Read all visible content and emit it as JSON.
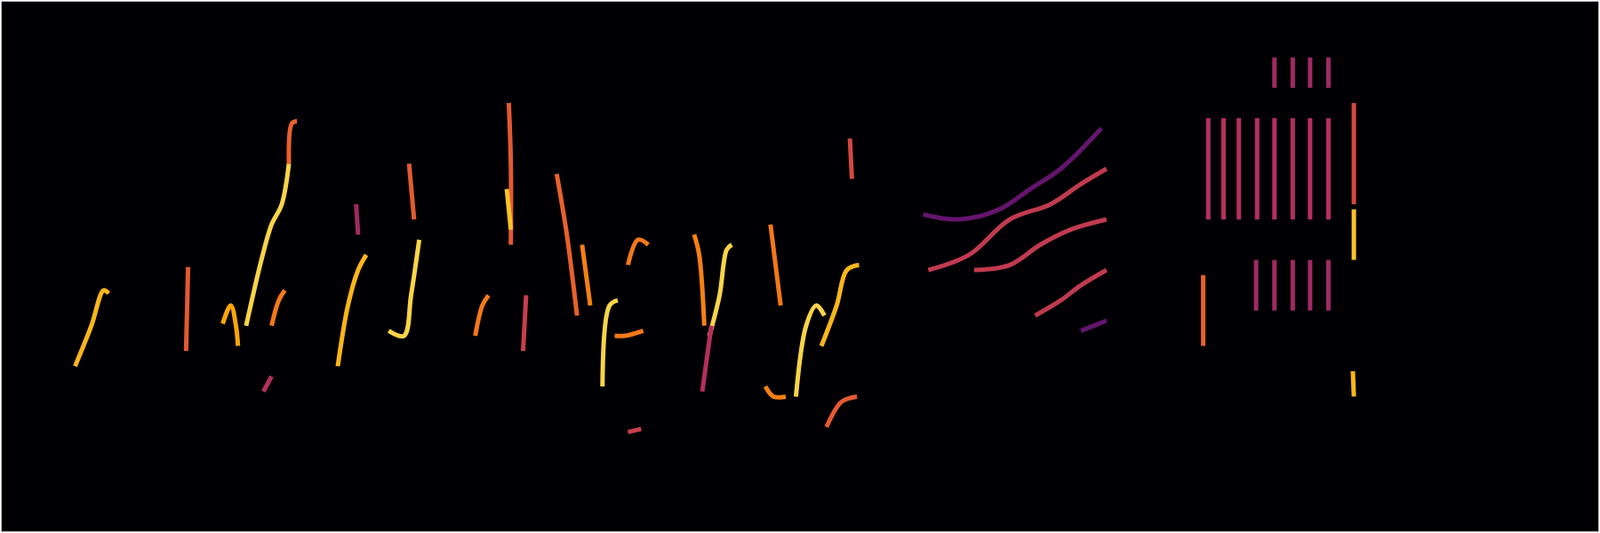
{
  "chart_data": {
    "type": "line",
    "xlim": [
      0,
      1568
    ],
    "ylim": [
      0,
      523
    ],
    "grid": false,
    "tick_labels": false,
    "series": [
      {
        "x": [
          72,
          88,
          100,
          105
        ],
        "values": [
          163,
          203,
          238,
          235
        ],
        "color": "#fbb61a"
      },
      {
        "x": [
          181,
          183
        ],
        "values": [
          178,
          261
        ],
        "color": "#e35932"
      },
      {
        "x": [
          217,
          225,
          230,
          232
        ],
        "values": [
          205,
          223,
          203,
          183
        ],
        "color": "#fca50a"
      },
      {
        "x": [
          240,
          255,
          265,
          275,
          282
        ],
        "values": [
          203,
          268,
          303,
          323,
          363
        ],
        "color": "#f9d448"
      },
      {
        "x": [
          282,
          285,
          290
        ],
        "values": [
          363,
          403,
          405
        ],
        "color": "#e8602c"
      },
      {
        "x": [
          257,
          265
        ],
        "values": [
          138,
          153
        ],
        "color": "#b52f5d"
      },
      {
        "x": [
          265,
          272,
          278
        ],
        "values": [
          203,
          228,
          238
        ],
        "color": "#f37819"
      },
      {
        "x": [
          330,
          340,
          350,
          358
        ],
        "values": [
          163,
          223,
          258,
          273
        ],
        "color": "#fbb61a"
      },
      {
        "x": [
          348,
          350
        ],
        "values": [
          323,
          293
        ],
        "color": "#9f2a63"
      },
      {
        "x": [
          380,
          395,
          402,
          410
        ],
        "values": [
          198,
          193,
          233,
          288
        ],
        "color": "#f9d448"
      },
      {
        "x": [
          400,
          405
        ],
        "values": [
          363,
          308
        ],
        "color": "#e45a31"
      },
      {
        "x": [
          465,
          472,
          478
        ],
        "values": [
          193,
          223,
          233
        ],
        "color": "#f37819"
      },
      {
        "x": [
          498,
          500,
          500
        ],
        "values": [
          423,
          363,
          283
        ],
        "color": "#e35932"
      },
      {
        "x": [
          496,
          500
        ],
        "values": [
          338,
          298
        ],
        "color": "#fcc229"
      },
      {
        "x": [
          512,
          515
        ],
        "values": [
          178,
          233
        ],
        "color": "#c73e4c"
      },
      {
        "x": [
          545,
          555,
          565
        ],
        "values": [
          353,
          293,
          213
        ],
        "color": "#e8602c"
      },
      {
        "x": [
          570,
          578
        ],
        "values": [
          283,
          223
        ],
        "color": "#f68013"
      },
      {
        "x": [
          590,
          597,
          605
        ],
        "values": [
          143,
          223,
          228
        ],
        "color": "#f9d448"
      },
      {
        "x": [
          602,
          612,
          630
        ],
        "values": [
          193,
          193,
          198
        ],
        "color": "#f37819"
      },
      {
        "x": [
          615,
          625,
          635
        ],
        "values": [
          263,
          288,
          283
        ],
        "color": "#f37819"
      },
      {
        "x": [
          615,
          628
        ],
        "values": [
          98,
          101
        ],
        "color": "#c73e4c"
      },
      {
        "x": [
          680,
          685,
          690
        ],
        "values": [
          293,
          273,
          203
        ],
        "color": "#f68013"
      },
      {
        "x": [
          695,
          705,
          712,
          717
        ],
        "values": [
          193,
          233,
          278,
          283
        ],
        "color": "#f9d448"
      },
      {
        "x": [
          688,
          697
        ],
        "values": [
          138,
          203
        ],
        "color": "#b52f5d"
      },
      {
        "x": [
          755,
          760,
          765
        ],
        "values": [
          303,
          263,
          223
        ],
        "color": "#f37819"
      },
      {
        "x": [
          750,
          758,
          770
        ],
        "values": [
          143,
          133,
          133
        ],
        "color": "#f68013"
      },
      {
        "x": [
          780,
          790,
          800,
          808
        ],
        "values": [
          133,
          203,
          223,
          213
        ],
        "color": "#f9d448"
      },
      {
        "x": [
          805,
          820,
          830,
          842
        ],
        "values": [
          183,
          223,
          258,
          263
        ],
        "color": "#fbb61a"
      },
      {
        "x": [
          810,
          825,
          840
        ],
        "values": [
          103,
          128,
          133
        ],
        "color": "#e35932"
      },
      {
        "x": [
          833,
          835
        ],
        "values": [
          388,
          348
        ],
        "color": "#d44842"
      },
      {
        "x": [
          905,
          940,
          980,
          1010,
          1040,
          1080
        ],
        "values": [
          313,
          308,
          318,
          338,
          358,
          398
        ],
        "color": "#65156e"
      },
      {
        "x": [
          910,
          950,
          990,
          1030,
          1060,
          1085
        ],
        "values": [
          258,
          273,
          308,
          323,
          343,
          358
        ],
        "color": "#c03a50"
      },
      {
        "x": [
          955,
          990,
          1020,
          1050,
          1085
        ],
        "values": [
          258,
          263,
          283,
          298,
          308
        ],
        "color": "#c03a50"
      },
      {
        "x": [
          1015,
          1040,
          1060,
          1085
        ],
        "values": [
          213,
          228,
          243,
          258
        ],
        "color": "#c03a50"
      },
      {
        "x": [
          1060,
          1085
        ],
        "values": [
          198,
          208
        ],
        "color": "#65156e"
      },
      {
        "x": [
          1185,
          1185
        ],
        "values": [
          408,
          308
        ],
        "color": "#b52f5d"
      },
      {
        "x": [
          1200,
          1200
        ],
        "values": [
          408,
          308
        ],
        "color": "#b52f5d"
      },
      {
        "x": [
          1215,
          1215
        ],
        "values": [
          408,
          308
        ],
        "color": "#b52f5d"
      },
      {
        "x": [
          1233,
          1233
        ],
        "values": [
          408,
          308
        ],
        "color": "#b52f5d"
      },
      {
        "x": [
          1250,
          1250
        ],
        "values": [
          408,
          308
        ],
        "color": "#b52f5d"
      },
      {
        "x": [
          1268,
          1268
        ],
        "values": [
          408,
          308
        ],
        "color": "#b52f5d"
      },
      {
        "x": [
          1285,
          1285
        ],
        "values": [
          408,
          308
        ],
        "color": "#b52f5d"
      },
      {
        "x": [
          1303,
          1303
        ],
        "values": [
          408,
          308
        ],
        "color": "#b52f5d"
      },
      {
        "x": [
          1232,
          1232
        ],
        "values": [
          268,
          218
        ],
        "color": "#9f2a63"
      },
      {
        "x": [
          1250,
          1250
        ],
        "values": [
          268,
          218
        ],
        "color": "#9f2a63"
      },
      {
        "x": [
          1268,
          1268
        ],
        "values": [
          268,
          218
        ],
        "color": "#9f2a63"
      },
      {
        "x": [
          1285,
          1285
        ],
        "values": [
          268,
          218
        ],
        "color": "#9f2a63"
      },
      {
        "x": [
          1303,
          1303
        ],
        "values": [
          268,
          218
        ],
        "color": "#9f2a63"
      },
      {
        "x": [
          1250,
          1250
        ],
        "values": [
          468,
          438
        ],
        "color": "#9f2a63"
      },
      {
        "x": [
          1268,
          1268
        ],
        "values": [
          468,
          438
        ],
        "color": "#9f2a63"
      },
      {
        "x": [
          1285,
          1285
        ],
        "values": [
          468,
          438
        ],
        "color": "#9f2a63"
      },
      {
        "x": [
          1303,
          1303
        ],
        "values": [
          468,
          438
        ],
        "color": "#9f2a63"
      },
      {
        "x": [
          1180,
          1180
        ],
        "values": [
          253,
          183
        ],
        "color": "#e8602c"
      },
      {
        "x": [
          1328,
          1328
        ],
        "values": [
          423,
          323
        ],
        "color": "#d44842"
      },
      {
        "x": [
          1328,
          1328
        ],
        "values": [
          318,
          268
        ],
        "color": "#fcc229"
      },
      {
        "x": [
          1327,
          1328
        ],
        "values": [
          158,
          133
        ],
        "color": "#fbb61a"
      }
    ]
  }
}
